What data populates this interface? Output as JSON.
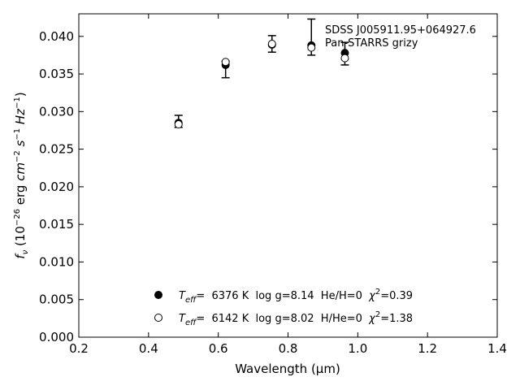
{
  "chart_data": {
    "type": "scatter",
    "title": "",
    "xlabel": "Wavelength (μm)",
    "ylabel": "f_ν (10^−26 erg cm^−2 s^−1 Hz^−1)",
    "xlim": [
      0.2,
      1.4
    ],
    "ylim": [
      0.0,
      0.043
    ],
    "x_ticks": [
      "0.2",
      "0.4",
      "0.6",
      "0.8",
      "1.0",
      "1.2",
      "1.4"
    ],
    "y_ticks": [
      "0.000",
      "0.005",
      "0.010",
      "0.015",
      "0.020",
      "0.025",
      "0.030",
      "0.035",
      "0.040"
    ],
    "grid": false,
    "annotation": {
      "line1": "SDSS J005911.95+064927.6",
      "line2": "Pan-STARRS grizy"
    },
    "observed": {
      "name": "Pan-STARRS grizy",
      "x": [
        0.486,
        0.621,
        0.754,
        0.867,
        0.963
      ],
      "y": [
        0.0287,
        0.0356,
        0.039,
        0.0399,
        0.0377
      ],
      "yerr": [
        0.0008,
        0.0011,
        0.0011,
        0.0024,
        0.0015
      ]
    },
    "series": [
      {
        "name": "Teff= 6376 K log g=8.14 He/H=0 χ2=0.39",
        "marker": "filled-circle",
        "x": [
          0.486,
          0.621,
          0.754,
          0.867,
          0.963
        ],
        "y": [
          0.0285,
          0.0362,
          0.0389,
          0.0388,
          0.0378
        ]
      },
      {
        "name": "Teff= 6142 K log g=8.02 H/He=0 χ2=1.38",
        "marker": "open-circle",
        "x": [
          0.486,
          0.621,
          0.754,
          0.867,
          0.963
        ],
        "y": [
          0.0283,
          0.0366,
          0.039,
          0.0385,
          0.0371
        ]
      }
    ],
    "legend": {
      "placement": "lower-center",
      "entries": [
        {
          "teff_label": "T",
          "teff_sub": "eff",
          "text": "=  6376 K  log g=8.14  He/H=0  ",
          "chi": "χ",
          "chi_sup": "2",
          "chi_val": "=0.39"
        },
        {
          "teff_label": "T",
          "teff_sub": "eff",
          "text": "=  6142 K  log g=8.02  H/He=0  ",
          "chi": "χ",
          "chi_sup": "2",
          "chi_val": "=1.38"
        }
      ]
    },
    "colors": {
      "marker": "#000000",
      "axis": "#000000",
      "background": "#ffffff"
    }
  }
}
